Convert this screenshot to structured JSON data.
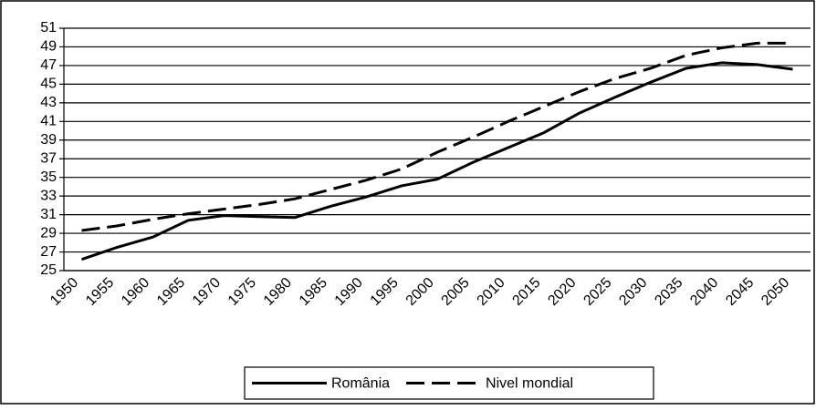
{
  "chart_data": {
    "type": "line",
    "categories": [
      "1950",
      "1955",
      "1960",
      "1965",
      "1970",
      "1975",
      "1980",
      "1985",
      "1990",
      "1995",
      "2000",
      "2005",
      "2010",
      "2015",
      "2020",
      "2025",
      "2030",
      "2035",
      "2040",
      "2045",
      "2050"
    ],
    "series": [
      {
        "name": "România",
        "color": "#000000",
        "dash": "solid",
        "values": [
          26.2,
          27.5,
          28.6,
          30.4,
          30.9,
          30.8,
          30.7,
          31.9,
          32.9,
          34.1,
          34.8,
          36.6,
          38.2,
          39.8,
          41.9,
          43.6,
          45.2,
          46.7,
          47.3,
          47.1,
          46.6
        ]
      },
      {
        "name": "Nivel mondial",
        "color": "#000000",
        "dash": "dashed",
        "values": [
          29.3,
          29.8,
          30.5,
          31.1,
          31.6,
          32.1,
          32.7,
          33.7,
          34.7,
          35.9,
          37.7,
          39.3,
          41.0,
          42.6,
          44.2,
          45.6,
          46.7,
          48.1,
          48.9,
          49.4,
          49.4
        ]
      }
    ],
    "ylim": [
      25,
      51
    ],
    "yticks": [
      25,
      27,
      29,
      31,
      33,
      35,
      37,
      39,
      41,
      43,
      45,
      47,
      49,
      51
    ],
    "grid": true,
    "legend": "bottom"
  }
}
